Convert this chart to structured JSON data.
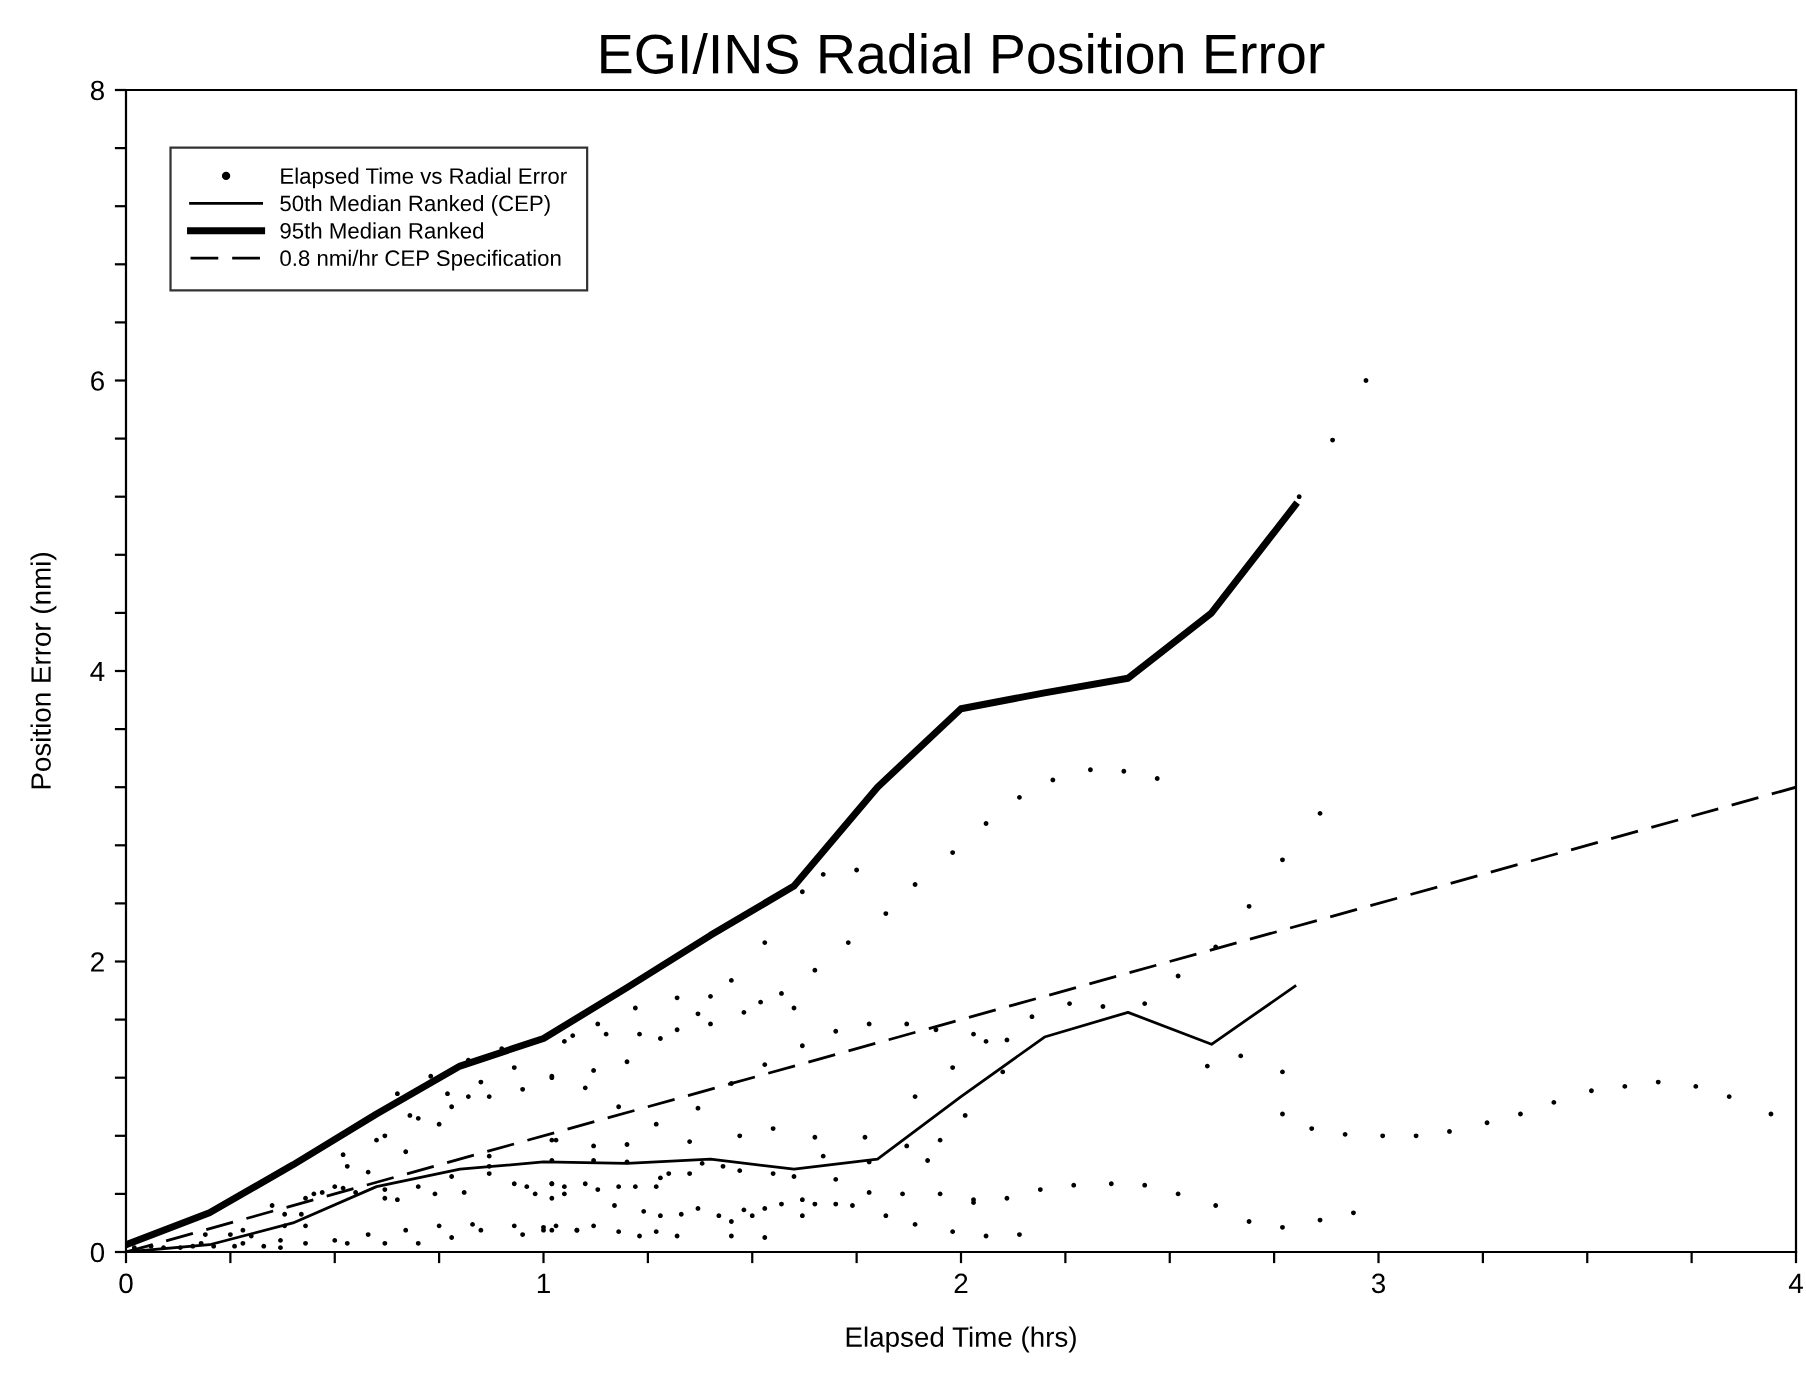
{
  "chart_data": {
    "type": "scatter",
    "title": "EGI/INS Radial Position Error",
    "xlabel": "Elapsed Time (hrs)",
    "ylabel": "Position Error (nmi)",
    "xlim": [
      0,
      4
    ],
    "ylim": [
      0,
      8
    ],
    "xticks": [
      0,
      {
        "value": 0.25,
        "label": null
      },
      {
        "value": 0.5,
        "label": null
      },
      {
        "value": 0.75,
        "label": null
      },
      1,
      {
        "value": 1.25,
        "label": null
      },
      {
        "value": 1.5,
        "label": null
      },
      {
        "value": 1.75,
        "label": null
      },
      2,
      {
        "value": 2.25,
        "label": null
      },
      {
        "value": 2.5,
        "label": null
      },
      {
        "value": 2.75,
        "label": null
      },
      3,
      {
        "value": 3.25,
        "label": null
      },
      {
        "value": 3.5,
        "label": null
      },
      {
        "value": 3.75,
        "label": null
      },
      4
    ],
    "yticks": [
      0,
      {
        "value": 0.4,
        "label": null
      },
      {
        "value": 0.8,
        "label": null
      },
      {
        "value": 1.2,
        "label": null
      },
      {
        "value": 1.6,
        "label": null
      },
      2,
      {
        "value": 2.4,
        "label": null
      },
      {
        "value": 2.8,
        "label": null
      },
      {
        "value": 3.2,
        "label": null
      },
      {
        "value": 3.6,
        "label": null
      },
      4,
      {
        "value": 4.4,
        "label": null
      },
      {
        "value": 4.8,
        "label": null
      },
      {
        "value": 5.2,
        "label": null
      },
      {
        "value": 5.6,
        "label": null
      },
      6,
      {
        "value": 6.4,
        "label": null
      },
      {
        "value": 6.8,
        "label": null
      },
      {
        "value": 7.2,
        "label": null
      },
      {
        "value": 7.6,
        "label": null
      },
      8
    ],
    "grid": false,
    "legend": "top left",
    "series": [
      {
        "name": "Elapsed Time vs Radial Error",
        "marker": "circle",
        "color": "#000000",
        "x": [
          2.06,
          2.14,
          2.22,
          2.31,
          2.39,
          2.47,
          2.81,
          2.89,
          2.97,
          2.86,
          2.77,
          2.69,
          2.61,
          2.52,
          2.67,
          2.77,
          2.77,
          2.84,
          2.92,
          3.01,
          3.09,
          3.17,
          3.26,
          3.34,
          3.42,
          3.51,
          3.59,
          3.67,
          3.76,
          3.84,
          3.94,
          2.03,
          2.11,
          2.19,
          2.27,
          2.36,
          2.44,
          2.52,
          2.61,
          2.69,
          2.77,
          2.86,
          2.94,
          2.06,
          2.14,
          2.03,
          2.06,
          2.11,
          2.17,
          2.26,
          2.34,
          2.44,
          2.59,
          2.01,
          2.1,
          1.98,
          1.89,
          1.75,
          1.67,
          1.62,
          1.82,
          1.53,
          1.73,
          1.65,
          1.45,
          1.32,
          1.4,
          1.57,
          1.52,
          1.22,
          1.37,
          1.48,
          1.6,
          1.4,
          1.32,
          1.13,
          1.07,
          1.05,
          1.15,
          1.23,
          1.28,
          1.7,
          1.78,
          1.87,
          1.94,
          1.62,
          1.53,
          1.2,
          1.02,
          1.12,
          1.1,
          1.45,
          1.98,
          1.89,
          1.18,
          1.37,
          1.27,
          1.55,
          1.02,
          1.2,
          1.47,
          1.65,
          1.77,
          1.87,
          1.35,
          1.12,
          1.95,
          1.92,
          1.67,
          1.02,
          1.12,
          1.2,
          1.38,
          1.43,
          1.47,
          1.55,
          1.6,
          1.7,
          1.78,
          1.02,
          1.05,
          1.1,
          1.13,
          1.18,
          1.22,
          1.27,
          1.28,
          1.3,
          1.35,
          1.17,
          1.24,
          1.28,
          1.33,
          1.37,
          1.42,
          1.45,
          1.48,
          1.5,
          1.53,
          1.57,
          1.62,
          1.65,
          1.7,
          1.74,
          1.78,
          1.82,
          1.86,
          1.95,
          2.03,
          1.0,
          1.02,
          1.08,
          1.12,
          1.18,
          1.23,
          1.27,
          1.32,
          1.45,
          1.53,
          1.62,
          1.89,
          1.98,
          1.02,
          0.93,
          0.85,
          0.82,
          0.87,
          0.95,
          0.73,
          0.77,
          0.78,
          0.68,
          0.7,
          0.75,
          0.6,
          0.62,
          0.67,
          0.52,
          0.53,
          0.58,
          0.87,
          1.03,
          0.45,
          0.43,
          0.47,
          0.5,
          0.52,
          0.55,
          0.62,
          0.62,
          0.65,
          0.7,
          0.74,
          0.78,
          0.81,
          0.87,
          0.87,
          0.93,
          0.96,
          0.98,
          1.02,
          1.02,
          1.05,
          0.35,
          0.38,
          0.42,
          0.43,
          0.38,
          0.37,
          0.37,
          0.28,
          0.3,
          0.28,
          0.25,
          0.26,
          0.21,
          0.18,
          0.16,
          0.13,
          0.09,
          0.06,
          0.02,
          0.19,
          0.33,
          0.43,
          0.5,
          0.53,
          0.58,
          0.62,
          0.67,
          0.7,
          0.75,
          0.78,
          0.83,
          0.85,
          0.93,
          0.95,
          1.0,
          1.03,
          1.08,
          0.65,
          0.82,
          0.9
        ],
        "values": [
          2.95,
          3.13,
          3.25,
          3.32,
          3.31,
          3.26,
          5.2,
          5.59,
          6.0,
          3.02,
          2.7,
          2.38,
          2.1,
          1.9,
          1.35,
          1.24,
          0.95,
          0.85,
          0.81,
          0.8,
          0.8,
          0.83,
          0.89,
          0.95,
          1.03,
          1.11,
          1.14,
          1.17,
          1.14,
          1.07,
          0.95,
          0.36,
          0.37,
          0.43,
          0.46,
          0.47,
          0.46,
          0.4,
          0.32,
          0.21,
          0.17,
          0.22,
          0.27,
          0.11,
          0.12,
          1.5,
          1.45,
          1.46,
          1.62,
          1.71,
          1.69,
          1.71,
          1.28,
          0.94,
          1.24,
          2.75,
          2.53,
          2.63,
          2.6,
          2.48,
          2.33,
          2.13,
          2.13,
          1.94,
          1.87,
          1.75,
          1.76,
          1.78,
          1.72,
          1.68,
          1.64,
          1.65,
          1.68,
          1.57,
          1.53,
          1.57,
          1.49,
          1.45,
          1.5,
          1.5,
          1.47,
          1.52,
          1.57,
          1.57,
          1.53,
          1.42,
          1.29,
          1.31,
          1.2,
          1.25,
          1.13,
          1.16,
          1.27,
          1.07,
          1.0,
          0.99,
          0.88,
          0.85,
          0.77,
          0.74,
          0.8,
          0.79,
          0.79,
          0.73,
          0.76,
          0.73,
          0.77,
          0.63,
          0.66,
          0.63,
          0.63,
          0.62,
          0.61,
          0.59,
          0.56,
          0.54,
          0.52,
          0.5,
          0.62,
          0.47,
          0.4,
          0.47,
          0.43,
          0.45,
          0.45,
          0.45,
          0.51,
          0.54,
          0.54,
          0.32,
          0.28,
          0.25,
          0.26,
          0.3,
          0.25,
          0.21,
          0.29,
          0.25,
          0.3,
          0.33,
          0.36,
          0.33,
          0.33,
          0.32,
          0.41,
          0.25,
          0.4,
          0.4,
          0.34,
          0.15,
          0.15,
          0.15,
          0.18,
          0.14,
          0.11,
          0.14,
          0.11,
          0.11,
          0.1,
          0.25,
          0.19,
          0.14,
          1.21,
          1.27,
          1.17,
          1.07,
          1.07,
          1.12,
          1.21,
          1.09,
          1.0,
          0.94,
          0.92,
          0.88,
          0.77,
          0.8,
          0.69,
          0.67,
          0.59,
          0.55,
          0.66,
          0.77,
          0.4,
          0.37,
          0.41,
          0.45,
          0.44,
          0.41,
          0.43,
          0.37,
          0.36,
          0.45,
          0.4,
          0.52,
          0.41,
          0.54,
          0.59,
          0.47,
          0.45,
          0.4,
          0.47,
          0.37,
          0.45,
          0.32,
          0.26,
          0.26,
          0.18,
          0.18,
          0.08,
          0.03,
          0.15,
          0.11,
          0.06,
          0.12,
          0.04,
          0.04,
          0.06,
          0.04,
          0.03,
          0.03,
          0.04,
          0.03,
          0.12,
          0.04,
          0.06,
          0.08,
          0.06,
          0.12,
          0.06,
          0.15,
          0.06,
          0.18,
          0.1,
          0.19,
          0.15,
          0.18,
          0.12,
          0.17,
          0.18,
          0.15,
          1.09,
          1.32,
          1.4
        ]
      },
      {
        "name": "50th Median Ranked (CEP)",
        "type": "line",
        "line_style": "solid",
        "color": "#000000",
        "x": [
          0,
          0.2,
          0.4,
          0.6,
          0.8,
          1.0,
          1.2,
          1.4,
          1.6,
          1.8,
          2.0,
          2.2,
          2.4,
          2.6,
          2.8
        ],
        "values": [
          0,
          0.05,
          0.2,
          0.45,
          0.57,
          0.62,
          0.61,
          0.64,
          0.57,
          0.64,
          1.07,
          1.48,
          1.65,
          1.43,
          1.83
        ]
      },
      {
        "name": "95th Median Ranked",
        "type": "line",
        "line_style": "solid",
        "color": "#000000",
        "x": [
          0,
          0.2,
          0.4,
          0.6,
          0.8,
          1.0,
          1.2,
          1.4,
          1.6,
          1.8,
          2.0,
          2.2,
          2.4,
          2.6,
          2.8
        ],
        "values": [
          0.05,
          0.27,
          0.6,
          0.95,
          1.28,
          1.47,
          1.82,
          2.18,
          2.52,
          3.2,
          3.74,
          3.85,
          3.95,
          4.4,
          5.14
        ]
      },
      {
        "name": "0.8 nmi/hr CEP Specification",
        "type": "line",
        "line_style": "dashed",
        "color": "#000000",
        "x": [
          0,
          4
        ],
        "values": [
          0,
          3.2
        ]
      }
    ]
  }
}
